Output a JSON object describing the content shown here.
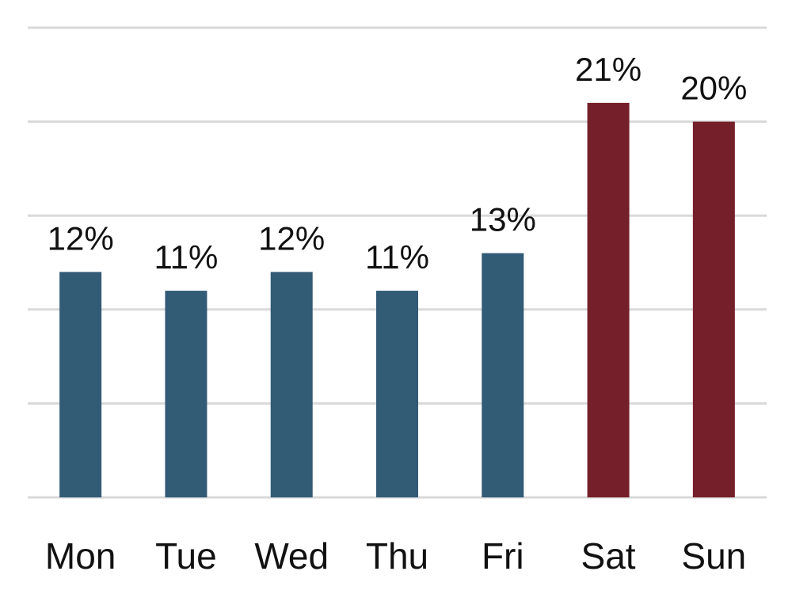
{
  "chart_data": {
    "type": "bar",
    "categories": [
      "Mon",
      "Tue",
      "Wed",
      "Thu",
      "Fri",
      "Sat",
      "Sun"
    ],
    "values": [
      12,
      11,
      12,
      11,
      13,
      21,
      20
    ],
    "data_labels": [
      "12%",
      "11%",
      "12%",
      "11%",
      "13%",
      "21%",
      "20%"
    ],
    "ylim": [
      0,
      25
    ],
    "y_grid_values": [
      0,
      5,
      10,
      15,
      20,
      25
    ],
    "grid": true,
    "colors": {
      "weekday": "#325b75",
      "weekend": "#741f29",
      "grid": "#d9d9d9"
    },
    "bar_color_keys": [
      "weekday",
      "weekday",
      "weekday",
      "weekday",
      "weekday",
      "weekend",
      "weekend"
    ]
  }
}
